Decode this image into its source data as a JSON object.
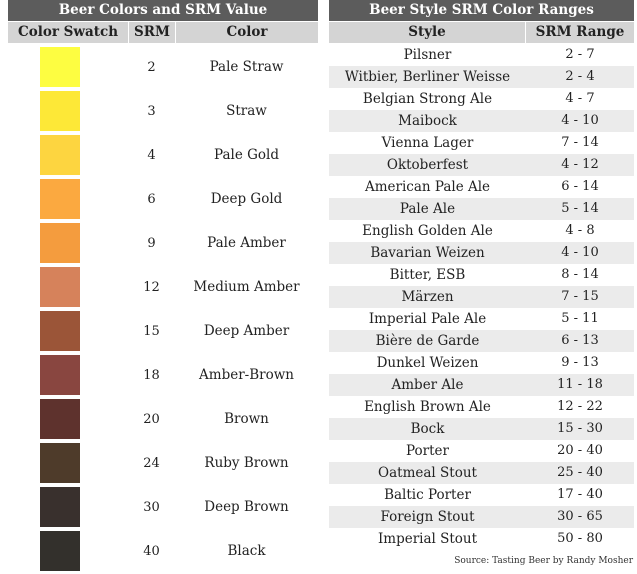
{
  "left_table": {
    "title": "Beer Colors and SRM Value",
    "headers": [
      "Color Swatch",
      "SRM",
      "Color"
    ],
    "rows": [
      {
        "srm": "2",
        "color": "Pale Straw",
        "swatch": "#fdfd41"
      },
      {
        "srm": "3",
        "color": "Straw",
        "swatch": "#fde837"
      },
      {
        "srm": "4",
        "color": "Pale Gold",
        "swatch": "#fdd540"
      },
      {
        "srm": "6",
        "color": "Deep Gold",
        "swatch": "#fba940"
      },
      {
        "srm": "9",
        "color": "Pale Amber",
        "swatch": "#f49c3e"
      },
      {
        "srm": "12",
        "color": "Medium Amber",
        "swatch": "#d6825b"
      },
      {
        "srm": "15",
        "color": "Deep Amber",
        "swatch": "#9b5538"
      },
      {
        "srm": "18",
        "color": "Amber-Brown",
        "swatch": "#894640"
      },
      {
        "srm": "20",
        "color": "Brown",
        "swatch": "#5e322d"
      },
      {
        "srm": "24",
        "color": "Ruby Brown",
        "swatch": "#4e3b2a"
      },
      {
        "srm": "30",
        "color": "Deep Brown",
        "swatch": "#39302d"
      },
      {
        "srm": "40",
        "color": "Black",
        "swatch": "#33302c"
      }
    ]
  },
  "right_table": {
    "title": "Beer Style SRM Color Ranges",
    "headers": [
      "Style",
      "SRM Range"
    ],
    "rows": [
      {
        "style": "Pilsner",
        "range": "2 - 7"
      },
      {
        "style": "Witbier, Berliner Weisse",
        "range": "2 - 4"
      },
      {
        "style": "Belgian Strong Ale",
        "range": "4 - 7"
      },
      {
        "style": "Maibock",
        "range": "4 - 10"
      },
      {
        "style": "Vienna Lager",
        "range": "7 - 14"
      },
      {
        "style": "Oktoberfest",
        "range": "4 - 12"
      },
      {
        "style": "American Pale Ale",
        "range": "6 - 14"
      },
      {
        "style": "Pale Ale",
        "range": "5 - 14"
      },
      {
        "style": "English Golden Ale",
        "range": "4 - 8"
      },
      {
        "style": "Bavarian Weizen",
        "range": "4 - 10"
      },
      {
        "style": "Bitter, ESB",
        "range": "8 - 14"
      },
      {
        "style": "Märzen",
        "range": "7 - 15"
      },
      {
        "style": "Imperial Pale Ale",
        "range": "5 - 11"
      },
      {
        "style": "Bière de Garde",
        "range": "6 - 13"
      },
      {
        "style": "Dunkel Weizen",
        "range": "9 - 13"
      },
      {
        "style": "Amber Ale",
        "range": "11 - 18"
      },
      {
        "style": "English Brown Ale",
        "range": "12 - 22"
      },
      {
        "style": "Bock",
        "range": "15 - 30"
      },
      {
        "style": "Porter",
        "range": "20 - 40"
      },
      {
        "style": "Oatmeal Stout",
        "range": "25 - 40"
      },
      {
        "style": "Baltic Porter",
        "range": "17 - 40"
      },
      {
        "style": "Foreign Stout",
        "range": "30 - 65"
      },
      {
        "style": "Imperial Stout",
        "range": "50 - 80"
      }
    ]
  },
  "source": "Source: Tasting Beer by Randy Mosher",
  "colors": {
    "title_bg": "#5c5c5c",
    "header_bg": "#d4d4d4",
    "alt_row_bg": "#ebebeb"
  }
}
